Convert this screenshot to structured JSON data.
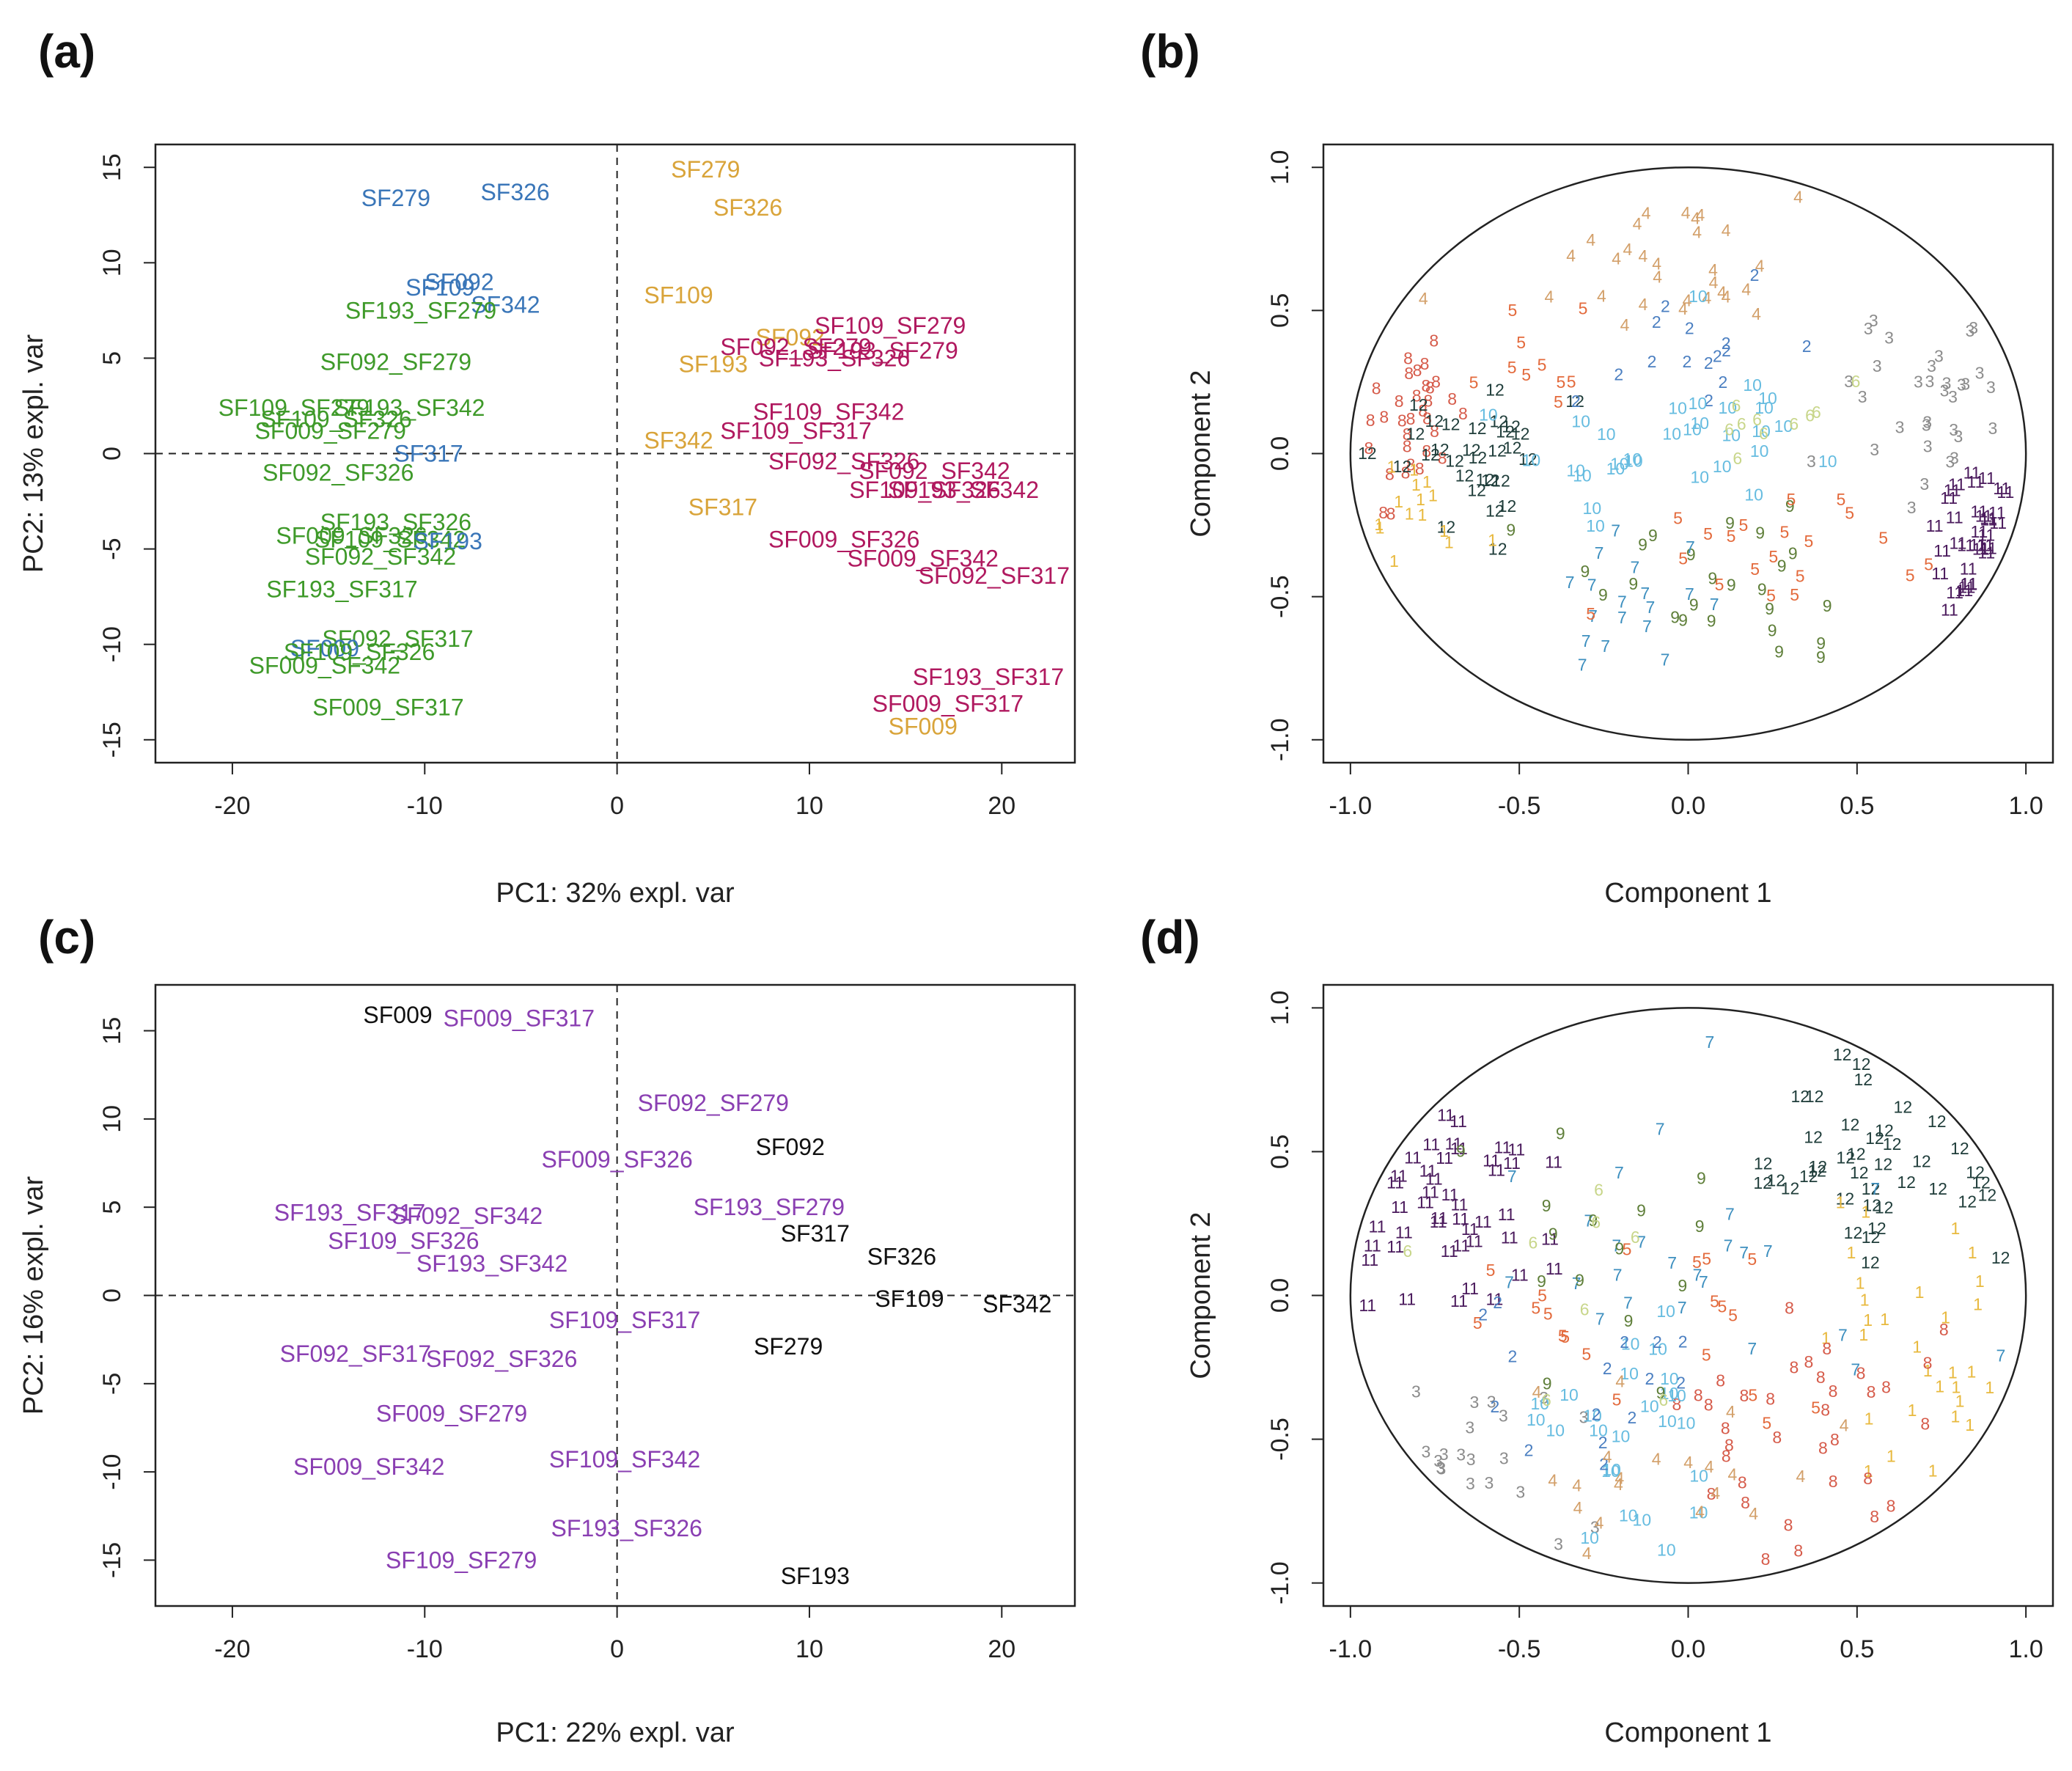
{
  "colors": {
    "blue": "#3a76b8",
    "gold": "#d9a43a",
    "green": "#3f9a2a",
    "magenta": "#b0195f",
    "purple": "#8a3fb2",
    "black": "#111111"
  },
  "chart_data": [
    {
      "panel": "(a)",
      "type": "scatter",
      "xlabel": "PC1: 32% expl. var",
      "ylabel": "PC2: 13% expl. var",
      "xlim": [
        -24,
        23.8
      ],
      "ylim": [
        -16.2,
        16.2
      ],
      "xticks": [
        "-20",
        "-10",
        "0",
        "10",
        "20"
      ],
      "xtick_values": [
        -20,
        -10,
        0,
        10,
        20
      ],
      "yticks": [
        "-15",
        "-10",
        "-5",
        "0",
        "5",
        "10",
        "15"
      ],
      "ytick_values": [
        -15,
        -10,
        -5,
        0,
        5,
        10,
        15
      ],
      "reference_lines": {
        "x": 0,
        "y": 0
      },
      "points": [
        {
          "label": "SF279",
          "x": -11.5,
          "y": 13.3,
          "color": "blue"
        },
        {
          "label": "SF326",
          "x": -5.3,
          "y": 13.6,
          "color": "blue"
        },
        {
          "label": "SF092",
          "x": -8.2,
          "y": 8.9,
          "color": "blue"
        },
        {
          "label": "SF109",
          "x": -9.2,
          "y": 8.6,
          "color": "blue"
        },
        {
          "label": "SF342",
          "x": -5.8,
          "y": 7.7,
          "color": "blue"
        },
        {
          "label": "SF193_SF279",
          "x": -10.2,
          "y": 7.4,
          "color": "green"
        },
        {
          "label": "SF092_SF279",
          "x": -11.5,
          "y": 4.7,
          "color": "green"
        },
        {
          "label": "SF109_SF279",
          "x": -16.8,
          "y": 2.3,
          "color": "green"
        },
        {
          "label": "SF193_SF342",
          "x": -10.8,
          "y": 2.3,
          "color": "green"
        },
        {
          "label": "SF109_SF326",
          "x": -14.6,
          "y": 1.7,
          "color": "green"
        },
        {
          "label": "SF009_SF279",
          "x": -14.9,
          "y": 1.1,
          "color": "green"
        },
        {
          "label": "SF317",
          "x": -9.8,
          "y": -0.1,
          "color": "blue"
        },
        {
          "label": "SF092_SF326",
          "x": -14.5,
          "y": -1.1,
          "color": "green"
        },
        {
          "label": "SF193_SF326",
          "x": -11.5,
          "y": -3.7,
          "color": "green"
        },
        {
          "label": "SF009_SF326",
          "x": -13.8,
          "y": -4.4,
          "color": "green"
        },
        {
          "label": "SF109_SF342",
          "x": -11.8,
          "y": -4.6,
          "color": "green"
        },
        {
          "label": "SF193",
          "x": -8.8,
          "y": -4.7,
          "color": "blue"
        },
        {
          "label": "SF092_SF342",
          "x": -12.3,
          "y": -5.5,
          "color": "green"
        },
        {
          "label": "SF193_SF317",
          "x": -14.3,
          "y": -7.2,
          "color": "green"
        },
        {
          "label": "SF092_SF317",
          "x": -11.4,
          "y": -9.8,
          "color": "green"
        },
        {
          "label": "SF009",
          "x": -15.2,
          "y": -10.3,
          "color": "blue"
        },
        {
          "label": "SF109_SF326",
          "x": -13.4,
          "y": -10.5,
          "color": "green"
        },
        {
          "label": "SF009_SF342",
          "x": -15.2,
          "y": -11.2,
          "color": "green"
        },
        {
          "label": "SF009_SF317",
          "x": -11.9,
          "y": -13.4,
          "color": "green"
        },
        {
          "label": "SF279",
          "x": 4.6,
          "y": 14.8,
          "color": "gold"
        },
        {
          "label": "SF326",
          "x": 6.8,
          "y": 12.8,
          "color": "gold"
        },
        {
          "label": "SF109",
          "x": 3.2,
          "y": 8.2,
          "color": "gold"
        },
        {
          "label": "SF092",
          "x": 9.0,
          "y": 6.0,
          "color": "gold"
        },
        {
          "label": "SF193",
          "x": 5.0,
          "y": 4.6,
          "color": "gold"
        },
        {
          "label": "SF342",
          "x": 3.2,
          "y": 0.6,
          "color": "gold"
        },
        {
          "label": "SF317",
          "x": 5.5,
          "y": -2.9,
          "color": "gold"
        },
        {
          "label": "SF009",
          "x": 15.9,
          "y": -14.4,
          "color": "gold"
        },
        {
          "label": "SF109_SF279",
          "x": 14.2,
          "y": 6.6,
          "color": "magenta"
        },
        {
          "label": "SF092_SF279",
          "x": 9.3,
          "y": 5.5,
          "color": "magenta"
        },
        {
          "label": "SF193_SF279",
          "x": 13.8,
          "y": 5.3,
          "color": "magenta"
        },
        {
          "label": "SF193_SF326",
          "x": 11.3,
          "y": 4.9,
          "color": "magenta"
        },
        {
          "label": "SF109_SF342",
          "x": 11.0,
          "y": 2.1,
          "color": "magenta"
        },
        {
          "label": "SF109_SF317",
          "x": 9.3,
          "y": 1.1,
          "color": "magenta"
        },
        {
          "label": "SF092_SF326",
          "x": 11.8,
          "y": -0.5,
          "color": "magenta"
        },
        {
          "label": "SF092_SF342",
          "x": 16.5,
          "y": -1.0,
          "color": "magenta"
        },
        {
          "label": "SF193_SF342",
          "x": 18.0,
          "y": -2.0,
          "color": "magenta"
        },
        {
          "label": "SF109_SF326",
          "x": 16.0,
          "y": -2.0,
          "color": "magenta"
        },
        {
          "label": "SF009_SF326",
          "x": 11.8,
          "y": -4.6,
          "color": "magenta"
        },
        {
          "label": "SF009_SF342",
          "x": 15.9,
          "y": -5.6,
          "color": "magenta"
        },
        {
          "label": "SF092_SF317",
          "x": 19.6,
          "y": -6.5,
          "color": "magenta"
        },
        {
          "label": "SF193_SF317",
          "x": 19.3,
          "y": -11.8,
          "color": "magenta"
        },
        {
          "label": "SF009_SF317",
          "x": 17.2,
          "y": -13.2,
          "color": "magenta"
        }
      ]
    },
    {
      "panel": "(b)",
      "type": "scatter",
      "xlabel": "Component 1",
      "ylabel": "Component 2",
      "xlim": [
        -1.08,
        1.08
      ],
      "ylim": [
        -1.08,
        1.08
      ],
      "xticks": [
        "-1.0",
        "-0.5",
        "0.0",
        "0.5",
        "1.0"
      ],
      "xtick_values": [
        -1,
        -0.5,
        0,
        0.5,
        1
      ],
      "yticks": [
        "-1.0",
        "-0.5",
        "0.0",
        "0.5",
        "1.0"
      ],
      "ytick_values": [
        -1,
        -0.5,
        0,
        0.5,
        1
      ],
      "circle_radius": 1.0,
      "group_colors": {
        "1": "#e8b93e",
        "2": "#4b7fc1",
        "3": "#8c8c8c",
        "4": "#d3a06a",
        "5": "#e36a3c",
        "6": "#c8d68a",
        "7": "#3d8fbf",
        "8": "#d65b4a",
        "9": "#5f7f3a",
        "10": "#66bce0",
        "11": "#4a1a5c",
        "12": "#1f3d3a"
      },
      "clusters": [
        {
          "label": "8",
          "cx": -0.82,
          "cy": 0.12,
          "sx": 0.08,
          "sy": 0.14,
          "n": 32
        },
        {
          "label": "12",
          "cx": -0.65,
          "cy": -0.05,
          "sx": 0.12,
          "sy": 0.15,
          "n": 30
        },
        {
          "label": "1",
          "cx": -0.82,
          "cy": -0.2,
          "sx": 0.08,
          "sy": 0.12,
          "n": 15
        },
        {
          "label": "5",
          "cx": -0.4,
          "cy": 0.35,
          "sx": 0.15,
          "sy": 0.1,
          "n": 10
        },
        {
          "label": "4",
          "cx": 0.0,
          "cy": 0.62,
          "sx": 0.28,
          "sy": 0.12,
          "n": 30
        },
        {
          "label": "2",
          "cx": -0.05,
          "cy": 0.38,
          "sx": 0.2,
          "sy": 0.1,
          "n": 15
        },
        {
          "label": "10",
          "cx": -0.05,
          "cy": 0.05,
          "sx": 0.25,
          "sy": 0.15,
          "n": 30
        },
        {
          "label": "3",
          "cx": 0.72,
          "cy": 0.2,
          "sx": 0.12,
          "sy": 0.15,
          "n": 32
        },
        {
          "label": "11",
          "cx": 0.83,
          "cy": -0.28,
          "sx": 0.08,
          "sy": 0.12,
          "n": 34
        },
        {
          "label": "9",
          "cx": 0.15,
          "cy": -0.45,
          "sx": 0.2,
          "sy": 0.15,
          "n": 25
        },
        {
          "label": "7",
          "cx": -0.18,
          "cy": -0.55,
          "sx": 0.15,
          "sy": 0.12,
          "n": 18
        },
        {
          "label": "5",
          "cx": 0.3,
          "cy": -0.35,
          "sx": 0.25,
          "sy": 0.1,
          "n": 20
        },
        {
          "label": "6",
          "cx": 0.3,
          "cy": 0.05,
          "sx": 0.2,
          "sy": 0.15,
          "n": 10
        }
      ]
    },
    {
      "panel": "(c)",
      "type": "scatter",
      "xlabel": "PC1: 22% expl. var",
      "ylabel": "PC2: 16% expl. var",
      "xlim": [
        -24,
        23.8
      ],
      "ylim": [
        -17.6,
        17.6
      ],
      "xticks": [
        "-20",
        "-10",
        "0",
        "10",
        "20"
      ],
      "xtick_values": [
        -20,
        -10,
        0,
        10,
        20
      ],
      "yticks": [
        "-15",
        "-10",
        "-5",
        "0",
        "5",
        "10",
        "15"
      ],
      "ytick_values": [
        -15,
        -10,
        -5,
        0,
        5,
        10,
        15
      ],
      "reference_lines": {
        "x": 0,
        "y": 0
      },
      "points": [
        {
          "label": "SF009",
          "x": -11.4,
          "y": 15.8,
          "color": "black"
        },
        {
          "label": "SF009_SF317",
          "x": -5.1,
          "y": 15.6,
          "color": "purple"
        },
        {
          "label": "SF092_SF279",
          "x": 5.0,
          "y": 10.8,
          "color": "purple"
        },
        {
          "label": "SF092",
          "x": 9.0,
          "y": 8.3,
          "color": "black"
        },
        {
          "label": "SF009_SF326",
          "x": 0.0,
          "y": 7.6,
          "color": "purple"
        },
        {
          "label": "SF193_SF279",
          "x": 7.9,
          "y": 4.9,
          "color": "purple"
        },
        {
          "label": "SF193_SF317",
          "x": -13.9,
          "y": 4.6,
          "color": "purple"
        },
        {
          "label": "SF092_SF342",
          "x": -7.8,
          "y": 4.4,
          "color": "purple"
        },
        {
          "label": "SF317",
          "x": 10.3,
          "y": 3.4,
          "color": "black"
        },
        {
          "label": "SF109_SF326",
          "x": -11.1,
          "y": 3.0,
          "color": "purple"
        },
        {
          "label": "SF326",
          "x": 14.8,
          "y": 2.1,
          "color": "black"
        },
        {
          "label": "SF193_SF342",
          "x": -6.5,
          "y": 1.7,
          "color": "purple"
        },
        {
          "label": "SF109",
          "x": 15.2,
          "y": -0.3,
          "color": "black"
        },
        {
          "label": "SF342",
          "x": 20.8,
          "y": -0.6,
          "color": "black"
        },
        {
          "label": "SF109_SF317",
          "x": 0.4,
          "y": -1.5,
          "color": "purple"
        },
        {
          "label": "SF279",
          "x": 8.9,
          "y": -3.0,
          "color": "black"
        },
        {
          "label": "SF092_SF317",
          "x": -13.6,
          "y": -3.4,
          "color": "purple"
        },
        {
          "label": "SF092_SF326",
          "x": -6.0,
          "y": -3.7,
          "color": "purple"
        },
        {
          "label": "SF009_SF279",
          "x": -8.6,
          "y": -6.8,
          "color": "purple"
        },
        {
          "label": "SF109_SF342",
          "x": 0.4,
          "y": -9.4,
          "color": "purple"
        },
        {
          "label": "SF009_SF342",
          "x": -12.9,
          "y": -9.8,
          "color": "purple"
        },
        {
          "label": "SF193_SF326",
          "x": 0.5,
          "y": -13.3,
          "color": "purple"
        },
        {
          "label": "SF109_SF279",
          "x": -8.1,
          "y": -15.1,
          "color": "purple"
        },
        {
          "label": "SF193",
          "x": 10.3,
          "y": -16.0,
          "color": "black"
        }
      ]
    },
    {
      "panel": "(d)",
      "type": "scatter",
      "xlabel": "Component 1",
      "ylabel": "Component 2",
      "xlim": [
        -1.08,
        1.08
      ],
      "ylim": [
        -1.08,
        1.08
      ],
      "xticks": [
        "-1.0",
        "-0.5",
        "0.0",
        "0.5",
        "1.0"
      ],
      "xtick_values": [
        -1,
        -0.5,
        0,
        0.5,
        1
      ],
      "yticks": [
        "-1.0",
        "-0.5",
        "0.0",
        "0.5",
        "1.0"
      ],
      "ytick_values": [
        -1,
        -0.5,
        0,
        0.5,
        1
      ],
      "circle_radius": 1.0,
      "group_colors": {
        "1": "#e8b93e",
        "2": "#4b7fc1",
        "3": "#8c8c8c",
        "4": "#d3a06a",
        "5": "#e36a3c",
        "6": "#c8d68a",
        "7": "#3d8fbf",
        "8": "#d65b4a",
        "9": "#5f7f3a",
        "10": "#66bce0",
        "11": "#4a1a5c",
        "12": "#1f3d3a"
      },
      "clusters": [
        {
          "label": "11",
          "cx": -0.7,
          "cy": 0.3,
          "sx": 0.15,
          "sy": 0.22,
          "n": 45
        },
        {
          "label": "3",
          "cx": -0.55,
          "cy": -0.5,
          "sx": 0.15,
          "sy": 0.15,
          "n": 20
        },
        {
          "label": "12",
          "cx": 0.55,
          "cy": 0.45,
          "sx": 0.2,
          "sy": 0.2,
          "n": 40
        },
        {
          "label": "1",
          "cx": 0.72,
          "cy": -0.2,
          "sx": 0.15,
          "sy": 0.25,
          "n": 30
        },
        {
          "label": "8",
          "cx": 0.35,
          "cy": -0.5,
          "sx": 0.2,
          "sy": 0.22,
          "n": 35
        },
        {
          "label": "10",
          "cx": -0.15,
          "cy": -0.45,
          "sx": 0.2,
          "sy": 0.2,
          "n": 25
        },
        {
          "label": "7",
          "cx": 0.0,
          "cy": 0.1,
          "sx": 0.3,
          "sy": 0.3,
          "n": 25
        },
        {
          "label": "5",
          "cx": -0.15,
          "cy": -0.1,
          "sx": 0.25,
          "sy": 0.25,
          "n": 20
        },
        {
          "label": "2",
          "cx": -0.25,
          "cy": -0.3,
          "sx": 0.2,
          "sy": 0.2,
          "n": 15
        },
        {
          "label": "9",
          "cx": -0.2,
          "cy": 0.2,
          "sx": 0.2,
          "sy": 0.3,
          "n": 15
        },
        {
          "label": "4",
          "cx": -0.1,
          "cy": -0.6,
          "sx": 0.3,
          "sy": 0.2,
          "n": 20
        },
        {
          "label": "6",
          "cx": -0.35,
          "cy": 0.1,
          "sx": 0.2,
          "sy": 0.25,
          "n": 8
        }
      ]
    }
  ]
}
